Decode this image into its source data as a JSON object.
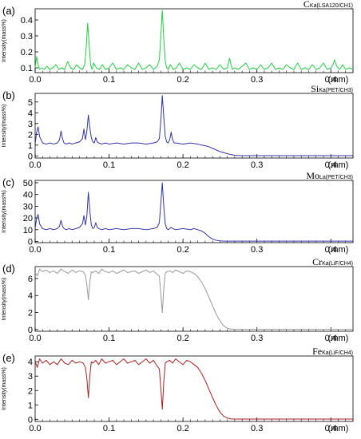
{
  "chart_data": [
    {
      "type": "line",
      "panel_label": "(a)",
      "element": "C",
      "line_tag": "Ka(LSA120/CH1)",
      "ylabel": "Intensity(mass%)",
      "xlabel": "(mm)",
      "xlim": [
        0,
        0.43
      ],
      "ylim": [
        0.07,
        0.47
      ],
      "yticks": [
        0.1,
        0.2,
        0.3,
        0.4
      ],
      "ytick_labels": [
        "0.1",
        "0.2",
        "0.3",
        "0.4"
      ],
      "xticks": [
        0,
        0.1,
        0.2,
        0.3,
        0.4
      ],
      "xtick_labels": [
        "0.0",
        "0.1",
        "0.2",
        "0.3",
        "0.4"
      ],
      "color": "#22cc44",
      "series": [
        {
          "x": [
            0,
            0.002,
            0.004,
            0.006,
            0.009,
            0.012,
            0.016,
            0.02,
            0.024,
            0.028,
            0.032,
            0.036,
            0.04,
            0.044,
            0.048,
            0.052,
            0.056,
            0.06,
            0.064,
            0.067,
            0.069,
            0.071,
            0.073,
            0.075,
            0.077,
            0.079,
            0.083,
            0.087,
            0.091,
            0.095,
            0.1,
            0.105,
            0.11,
            0.115,
            0.12,
            0.125,
            0.13,
            0.135,
            0.14,
            0.145,
            0.15,
            0.155,
            0.16,
            0.165,
            0.168,
            0.17,
            0.172,
            0.174,
            0.176,
            0.178,
            0.18,
            0.183,
            0.187,
            0.191,
            0.195,
            0.2,
            0.205,
            0.21,
            0.215,
            0.22,
            0.225,
            0.23,
            0.235,
            0.24,
            0.245,
            0.25,
            0.255,
            0.26,
            0.263,
            0.265,
            0.267,
            0.27,
            0.275,
            0.28,
            0.285,
            0.29,
            0.295,
            0.3,
            0.305,
            0.31,
            0.315,
            0.32,
            0.325,
            0.33,
            0.335,
            0.34,
            0.345,
            0.35,
            0.355,
            0.36,
            0.365,
            0.37,
            0.375,
            0.38,
            0.385,
            0.39,
            0.395,
            0.4,
            0.403,
            0.405,
            0.408,
            0.412,
            0.416,
            0.42,
            0.425,
            0.43
          ],
          "y": [
            0.1,
            0.17,
            0.12,
            0.09,
            0.1,
            0.09,
            0.11,
            0.09,
            0.1,
            0.12,
            0.09,
            0.1,
            0.09,
            0.14,
            0.1,
            0.09,
            0.12,
            0.1,
            0.09,
            0.12,
            0.22,
            0.38,
            0.25,
            0.12,
            0.09,
            0.13,
            0.1,
            0.09,
            0.12,
            0.09,
            0.1,
            0.13,
            0.09,
            0.1,
            0.09,
            0.12,
            0.1,
            0.09,
            0.13,
            0.09,
            0.1,
            0.12,
            0.09,
            0.11,
            0.15,
            0.3,
            0.46,
            0.28,
            0.14,
            0.1,
            0.09,
            0.12,
            0.09,
            0.1,
            0.13,
            0.09,
            0.1,
            0.09,
            0.12,
            0.1,
            0.09,
            0.13,
            0.09,
            0.1,
            0.09,
            0.12,
            0.09,
            0.1,
            0.16,
            0.12,
            0.09,
            0.1,
            0.09,
            0.11,
            0.13,
            0.09,
            0.1,
            0.09,
            0.12,
            0.09,
            0.1,
            0.13,
            0.09,
            0.1,
            0.09,
            0.12,
            0.1,
            0.09,
            0.13,
            0.09,
            0.1,
            0.09,
            0.12,
            0.09,
            0.1,
            0.13,
            0.09,
            0.1,
            0.12,
            0.15,
            0.11,
            0.09,
            0.12,
            0.09,
            0.1,
            0.09
          ]
        }
      ]
    },
    {
      "type": "line",
      "panel_label": "(b)",
      "element": "Si",
      "line_tag": "Ka(PET/CH3)",
      "ylabel": "Intensity(mass%)",
      "xlabel": "(mm)",
      "xlim": [
        0,
        0.43
      ],
      "ylim": [
        -0.2,
        5.8
      ],
      "yticks": [
        0,
        1,
        2,
        3,
        4,
        5
      ],
      "ytick_labels": [
        "0",
        "1",
        "2",
        "3",
        "4",
        "5"
      ],
      "xticks": [
        0,
        0.1,
        0.2,
        0.3,
        0.4
      ],
      "xtick_labels": [
        "0.0",
        "0.1",
        "0.2",
        "0.3",
        "0.4"
      ],
      "color": "#3333aa",
      "series": [
        {
          "x": [
            0,
            0.002,
            0.004,
            0.006,
            0.01,
            0.015,
            0.02,
            0.025,
            0.03,
            0.033,
            0.035,
            0.037,
            0.039,
            0.042,
            0.046,
            0.05,
            0.055,
            0.06,
            0.064,
            0.066,
            0.068,
            0.07,
            0.072,
            0.074,
            0.076,
            0.078,
            0.08,
            0.082,
            0.084,
            0.086,
            0.09,
            0.095,
            0.1,
            0.11,
            0.12,
            0.13,
            0.14,
            0.15,
            0.16,
            0.165,
            0.168,
            0.17,
            0.172,
            0.174,
            0.176,
            0.178,
            0.18,
            0.182,
            0.184,
            0.186,
            0.188,
            0.19,
            0.2,
            0.21,
            0.22,
            0.225,
            0.23,
            0.235,
            0.24,
            0.245,
            0.25,
            0.255,
            0.26,
            0.265,
            0.27,
            0.275,
            0.28,
            0.3,
            0.32,
            0.34,
            0.36,
            0.38,
            0.4,
            0.42,
            0.43
          ],
          "y": [
            1.1,
            2.2,
            2.7,
            1.8,
            1.2,
            1.1,
            1.2,
            1.1,
            1.2,
            1.5,
            2.3,
            1.6,
            1.2,
            1.1,
            1.2,
            1.1,
            1.2,
            1.3,
            1.6,
            2.5,
            1.5,
            2.3,
            3.8,
            2.6,
            1.7,
            1.3,
            1.2,
            1.7,
            1.3,
            1.2,
            1.1,
            1.2,
            1.1,
            1.2,
            1.1,
            1.2,
            1.2,
            1.1,
            1.2,
            1.3,
            1.6,
            3.2,
            5.6,
            3.6,
            1.8,
            1.3,
            1.2,
            1.5,
            2.2,
            1.5,
            1.2,
            1.2,
            1.1,
            1.2,
            1.1,
            1.0,
            0.95,
            0.85,
            0.7,
            0.55,
            0.4,
            0.3,
            0.2,
            0.12,
            0.06,
            0.03,
            0.02,
            0.02,
            0.02,
            0.02,
            0.02,
            0.02,
            0.02,
            0.02,
            0.02
          ]
        }
      ]
    },
    {
      "type": "line",
      "panel_label": "(c)",
      "element": "Mo",
      "line_tag": "La(PET/CH3)",
      "ylabel": "Intensity(mass%)",
      "xlabel": "(mm)",
      "xlim": [
        0,
        0.43
      ],
      "ylim": [
        -1,
        52
      ],
      "yticks": [
        0,
        10,
        20,
        30,
        40,
        50
      ],
      "ytick_labels": [
        "0",
        "10",
        "20",
        "30",
        "40",
        "50"
      ],
      "xticks": [
        0,
        0.1,
        0.2,
        0.3,
        0.4
      ],
      "xtick_labels": [
        "0.0",
        "0.1",
        "0.2",
        "0.3",
        "0.4"
      ],
      "color": "#3333aa",
      "series": [
        {
          "x": [
            0,
            0.002,
            0.004,
            0.006,
            0.01,
            0.015,
            0.02,
            0.025,
            0.03,
            0.033,
            0.035,
            0.037,
            0.039,
            0.042,
            0.046,
            0.05,
            0.055,
            0.06,
            0.064,
            0.066,
            0.068,
            0.07,
            0.072,
            0.074,
            0.076,
            0.078,
            0.08,
            0.082,
            0.084,
            0.086,
            0.09,
            0.095,
            0.1,
            0.11,
            0.12,
            0.13,
            0.14,
            0.15,
            0.16,
            0.165,
            0.168,
            0.17,
            0.172,
            0.174,
            0.176,
            0.178,
            0.18,
            0.182,
            0.184,
            0.186,
            0.19,
            0.2,
            0.21,
            0.215,
            0.22,
            0.225,
            0.23,
            0.235,
            0.24,
            0.245,
            0.25,
            0.255,
            0.26,
            0.27,
            0.28,
            0.3,
            0.32,
            0.34,
            0.36,
            0.38,
            0.4,
            0.42,
            0.43
          ],
          "y": [
            11,
            20,
            23,
            15,
            11,
            10,
            11,
            10,
            11,
            13,
            18,
            13,
            11,
            10,
            11,
            10,
            11,
            12,
            15,
            22,
            14,
            22,
            42,
            26,
            14,
            11,
            12,
            16,
            12,
            11,
            10,
            11,
            10,
            11,
            10,
            11,
            11,
            10,
            11,
            12,
            16,
            32,
            50,
            30,
            15,
            11,
            10,
            11,
            12,
            11,
            10,
            11,
            10,
            11,
            10,
            9,
            7,
            4,
            2,
            1,
            0.5,
            0.3,
            0.3,
            0.3,
            0.3,
            0.3,
            0.3,
            0.3,
            0.3,
            0.3,
            0.3,
            0.3,
            0.3
          ]
        }
      ]
    },
    {
      "type": "line",
      "panel_label": "(d)",
      "element": "Cr",
      "line_tag": "Ka(LiF/CH4)",
      "ylabel": "Intensity(mass%)",
      "xlabel": "(mm)",
      "xlim": [
        0,
        0.43
      ],
      "ylim": [
        -0.2,
        7.4
      ],
      "yticks": [
        0,
        2,
        4,
        6
      ],
      "ytick_labels": [
        "0",
        "2",
        "4",
        "6"
      ],
      "xticks": [
        0,
        0.1,
        0.2,
        0.3,
        0.4
      ],
      "xtick_labels": [
        "0.0",
        "0.1",
        "0.2",
        "0.3",
        "0.4"
      ],
      "color": "#999999",
      "series": [
        {
          "x": [
            0,
            0.003,
            0.006,
            0.01,
            0.015,
            0.02,
            0.025,
            0.03,
            0.035,
            0.04,
            0.045,
            0.05,
            0.055,
            0.06,
            0.065,
            0.068,
            0.07,
            0.072,
            0.074,
            0.076,
            0.078,
            0.082,
            0.086,
            0.09,
            0.095,
            0.1,
            0.105,
            0.11,
            0.115,
            0.12,
            0.125,
            0.13,
            0.135,
            0.14,
            0.145,
            0.15,
            0.155,
            0.16,
            0.165,
            0.168,
            0.17,
            0.172,
            0.174,
            0.176,
            0.178,
            0.182,
            0.186,
            0.19,
            0.195,
            0.2,
            0.205,
            0.21,
            0.215,
            0.22,
            0.225,
            0.23,
            0.235,
            0.24,
            0.245,
            0.25,
            0.255,
            0.26,
            0.265,
            0.27,
            0.28,
            0.3,
            0.32,
            0.34,
            0.36,
            0.38,
            0.4,
            0.42,
            0.43
          ],
          "y": [
            6.7,
            6.3,
            7.1,
            6.8,
            7.0,
            6.7,
            6.9,
            6.6,
            7.1,
            6.8,
            6.6,
            7.0,
            6.7,
            6.9,
            6.8,
            6.4,
            5.2,
            3.5,
            5.6,
            6.8,
            6.7,
            6.9,
            6.6,
            7.1,
            6.8,
            6.7,
            6.9,
            6.6,
            6.8,
            7.0,
            6.7,
            6.8,
            6.9,
            6.6,
            6.8,
            7.0,
            6.7,
            6.9,
            6.5,
            6.3,
            4.2,
            2.0,
            4.8,
            6.6,
            6.8,
            6.9,
            6.7,
            7.0,
            6.8,
            6.6,
            6.9,
            6.8,
            6.6,
            6.2,
            5.6,
            4.8,
            3.8,
            2.8,
            1.8,
            1.0,
            0.45,
            0.15,
            0.05,
            0.02,
            0.02,
            0.02,
            0.02,
            0.02,
            0.02,
            0.02,
            0.02,
            0.02,
            0.02
          ]
        }
      ]
    },
    {
      "type": "line",
      "panel_label": "(e)",
      "element": "Fe",
      "line_tag": "Ka(LiF/CH4)",
      "ylabel": "Intensity(mass%)",
      "xlabel": "(mm)",
      "xlim": [
        0,
        0.43
      ],
      "ylim": [
        -0.15,
        4.4
      ],
      "yticks": [
        0,
        1,
        2,
        3,
        4
      ],
      "ytick_labels": [
        "0",
        "1",
        "2",
        "3",
        "4"
      ],
      "xticks": [
        0,
        0.1,
        0.2,
        0.3,
        0.4
      ],
      "xtick_labels": [
        "0.0",
        "0.1",
        "0.2",
        "0.3",
        "0.4"
      ],
      "color": "#aa2222",
      "series": [
        {
          "x": [
            0,
            0.003,
            0.006,
            0.01,
            0.015,
            0.02,
            0.025,
            0.03,
            0.035,
            0.04,
            0.045,
            0.05,
            0.055,
            0.06,
            0.065,
            0.068,
            0.07,
            0.072,
            0.074,
            0.076,
            0.078,
            0.082,
            0.086,
            0.09,
            0.095,
            0.1,
            0.105,
            0.11,
            0.115,
            0.12,
            0.125,
            0.13,
            0.135,
            0.14,
            0.145,
            0.15,
            0.155,
            0.16,
            0.165,
            0.168,
            0.17,
            0.172,
            0.174,
            0.176,
            0.178,
            0.182,
            0.186,
            0.19,
            0.195,
            0.2,
            0.205,
            0.21,
            0.215,
            0.22,
            0.225,
            0.23,
            0.235,
            0.24,
            0.245,
            0.25,
            0.255,
            0.26,
            0.265,
            0.27,
            0.28,
            0.3,
            0.32,
            0.34,
            0.36,
            0.38,
            0.4,
            0.42,
            0.43
          ],
          "y": [
            4.0,
            3.6,
            4.2,
            3.9,
            4.1,
            3.8,
            4.0,
            3.8,
            4.2,
            3.9,
            3.8,
            4.1,
            3.9,
            4.0,
            3.9,
            3.6,
            2.8,
            1.5,
            3.0,
            4.0,
            3.9,
            4.1,
            3.8,
            4.2,
            3.9,
            4.0,
            4.1,
            3.8,
            4.0,
            4.2,
            3.9,
            4.0,
            4.1,
            3.8,
            4.0,
            4.2,
            3.9,
            4.1,
            3.7,
            3.5,
            2.2,
            0.7,
            2.6,
            3.9,
            4.0,
            4.1,
            3.9,
            4.2,
            4.0,
            3.8,
            4.1,
            4.0,
            3.8,
            3.6,
            3.2,
            2.7,
            2.1,
            1.5,
            0.95,
            0.5,
            0.22,
            0.08,
            0.03,
            0.02,
            0.02,
            0.02,
            0.02,
            0.02,
            0.02,
            0.02,
            0.02,
            0.02,
            0.02
          ]
        }
      ]
    }
  ]
}
